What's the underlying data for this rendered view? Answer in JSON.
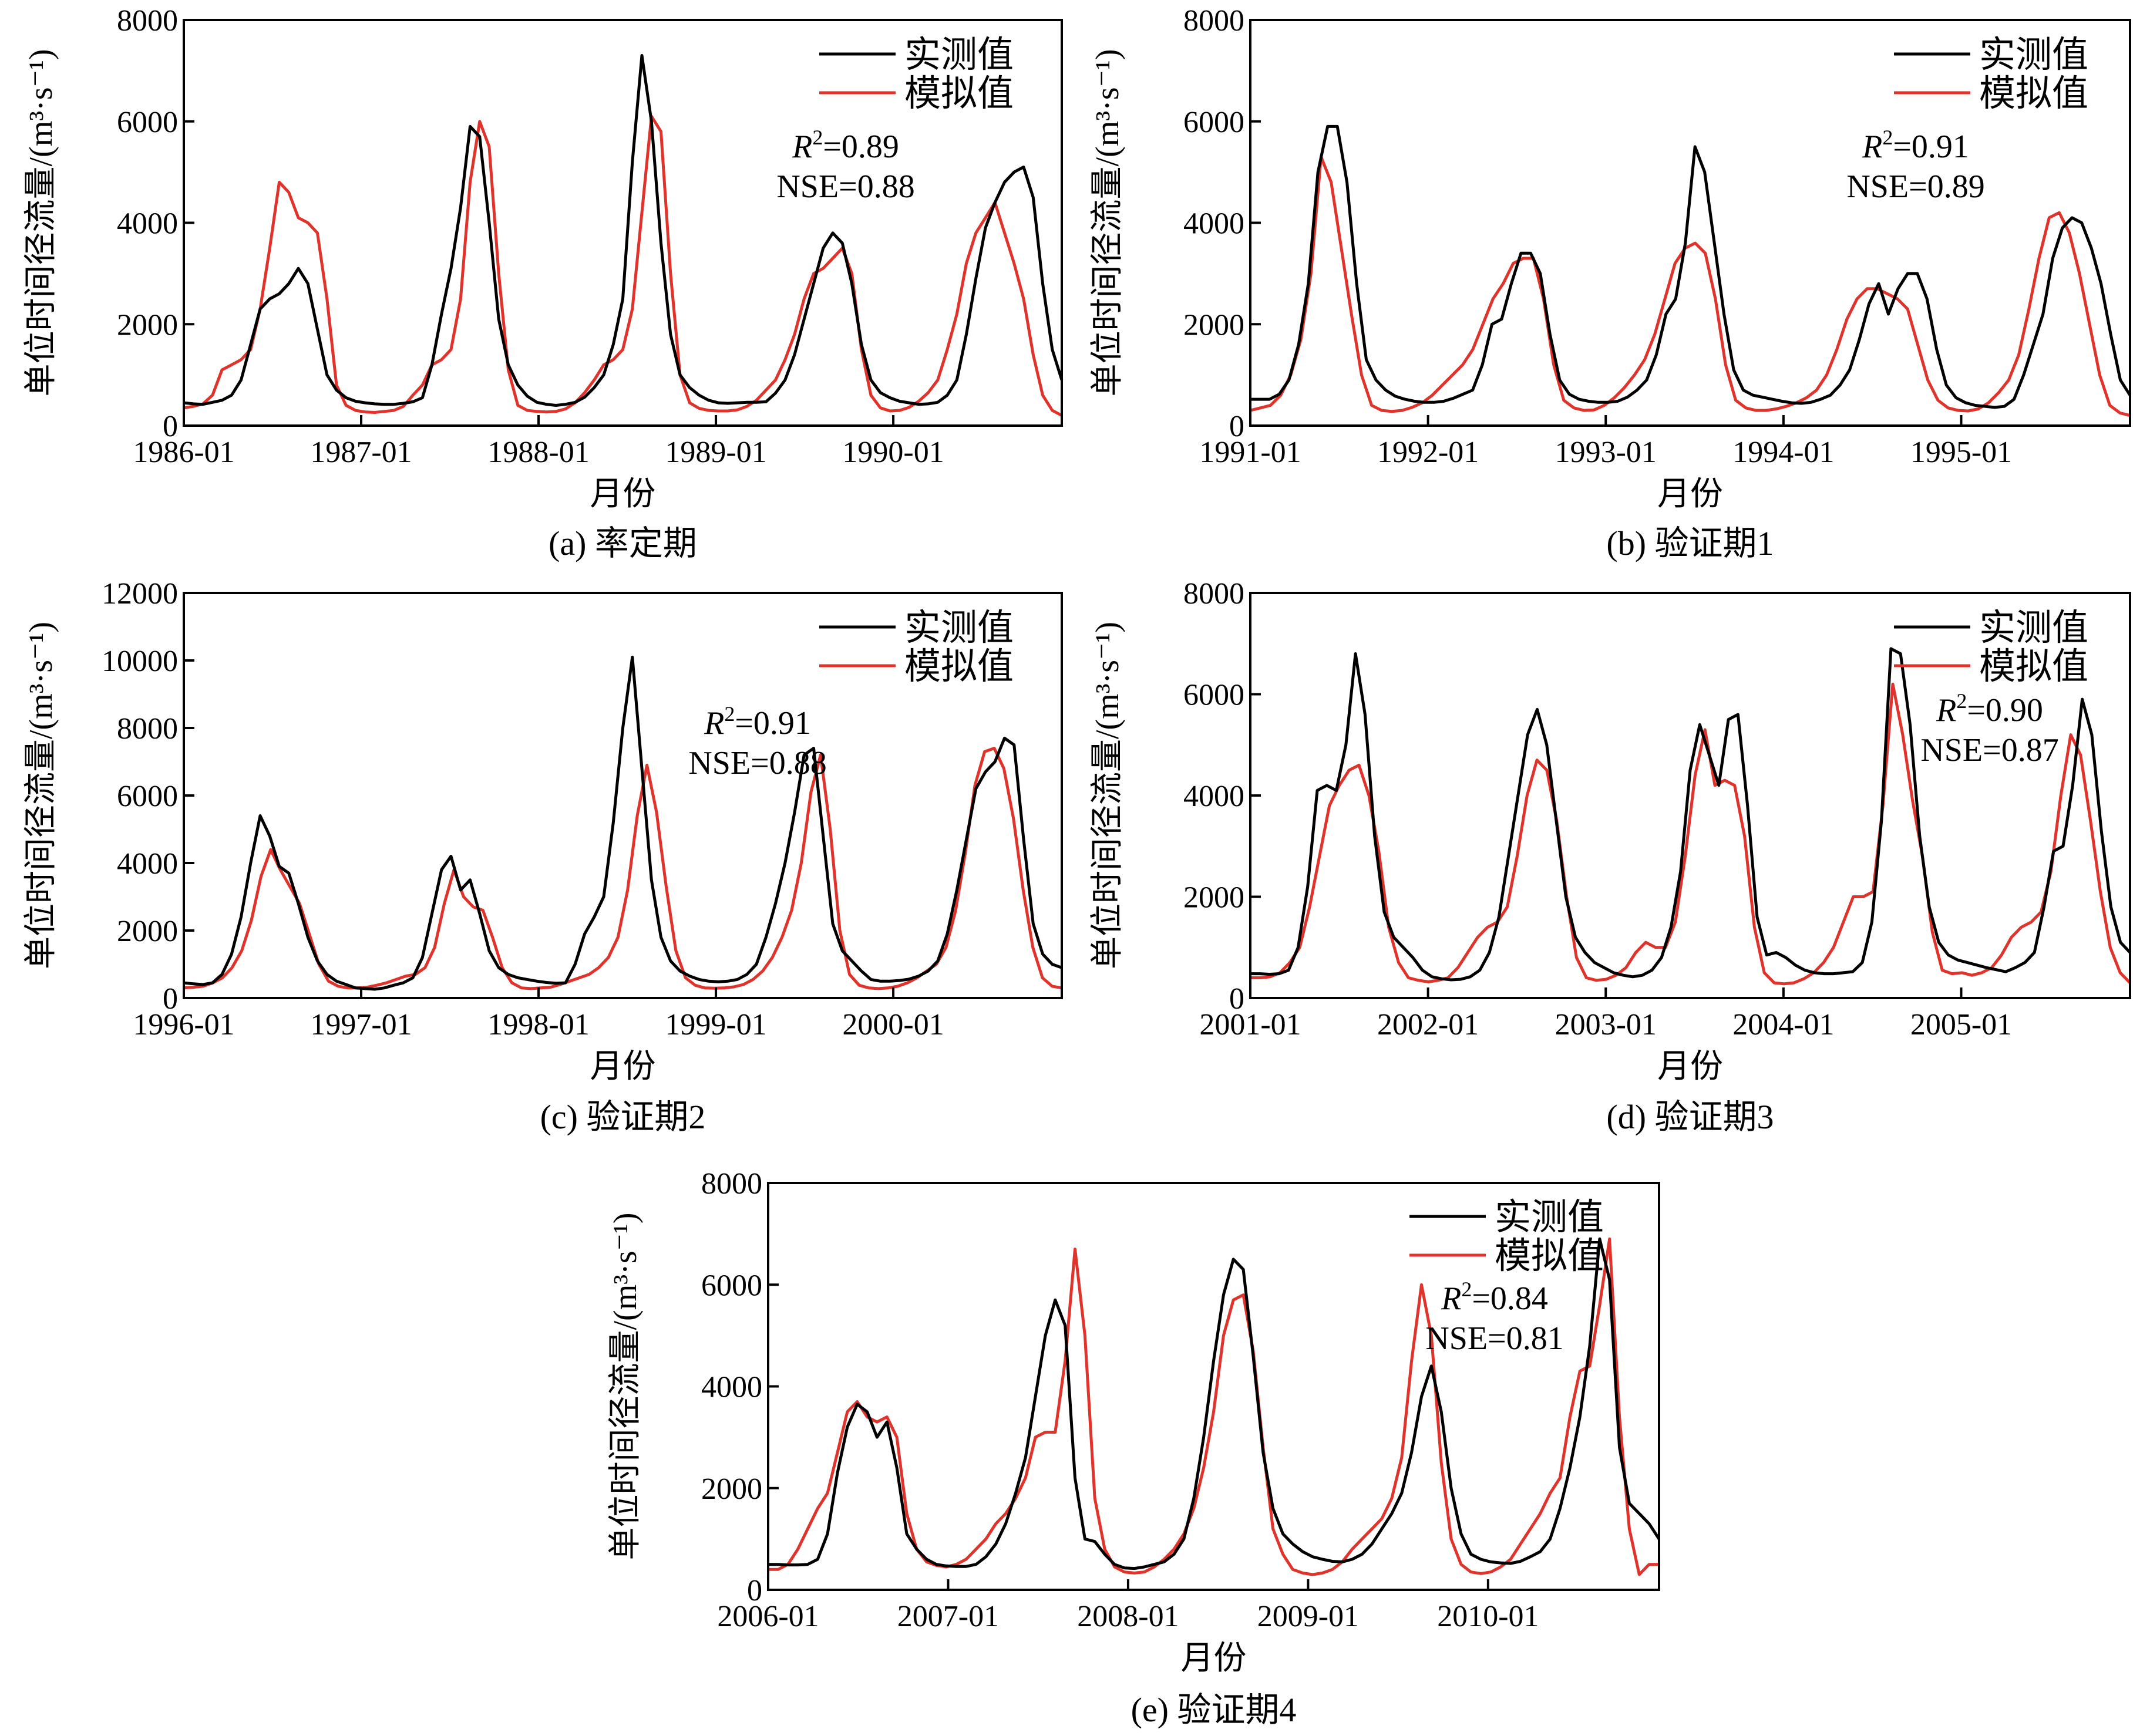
{
  "legend": {
    "observed": "实测值",
    "simulated": "模拟值"
  },
  "colors": {
    "observed": "#000000",
    "simulated": "#e0332b"
  },
  "chart_data": [
    {
      "type": "line",
      "caption": "(a) 率定期",
      "xlabel": "月份",
      "ylabel": "单位时间径流量/(m³·s⁻¹)",
      "xticks": [
        "1986-01",
        "1987-01",
        "1988-01",
        "1989-01",
        "1990-01"
      ],
      "start_year": 1986,
      "ylim": [
        0,
        8000
      ],
      "yticks": [
        "0",
        "2000",
        "4000",
        "6000",
        "8000"
      ],
      "stats": {
        "r2": "=0.89",
        "nse": "NSE=0.88"
      },
      "series": [
        {
          "name": "实测值",
          "values": [
            450,
            430,
            420,
            460,
            500,
            600,
            900,
            1600,
            2300,
            2500,
            2600,
            2800,
            3100,
            2800,
            1900,
            1000,
            700,
            550,
            480,
            450,
            430,
            420,
            420,
            440,
            470,
            550,
            1200,
            2200,
            3100,
            4300,
            5900,
            5700,
            4000,
            2100,
            1200,
            800,
            580,
            460,
            420,
            400,
            420,
            460,
            560,
            750,
            1000,
            1600,
            2500,
            5200,
            7300,
            6000,
            3600,
            1800,
            1000,
            750,
            600,
            500,
            450,
            440,
            450,
            460,
            460,
            470,
            640,
            900,
            1400,
            2100,
            2800,
            3500,
            3800,
            3600,
            2800,
            1600,
            900,
            650,
            550,
            480,
            450,
            420,
            430,
            460,
            600,
            900,
            1800,
            2900,
            3900,
            4400,
            4800,
            5000,
            5100,
            4500,
            2800,
            1500,
            900
          ]
        },
        {
          "name": "模拟值",
          "values": [
            350,
            380,
            430,
            600,
            1100,
            1200,
            1300,
            1500,
            2300,
            3500,
            4800,
            4600,
            4100,
            4000,
            3800,
            2500,
            800,
            400,
            300,
            270,
            260,
            280,
            300,
            380,
            600,
            800,
            1200,
            1300,
            1500,
            2500,
            4800,
            6000,
            5500,
            3000,
            1100,
            400,
            300,
            280,
            270,
            280,
            330,
            450,
            650,
            900,
            1200,
            1300,
            1500,
            2300,
            4200,
            6100,
            5800,
            3000,
            1000,
            450,
            340,
            300,
            290,
            290,
            310,
            380,
            500,
            700,
            900,
            1300,
            1800,
            2500,
            3000,
            3100,
            3300,
            3500,
            3000,
            1500,
            600,
            350,
            290,
            300,
            360,
            480,
            650,
            900,
            1500,
            2200,
            3200,
            3800,
            4100,
            4400,
            3800,
            3200,
            2500,
            1400,
            600,
            300,
            200
          ]
        }
      ]
    },
    {
      "type": "line",
      "caption": "(b) 验证期1",
      "xlabel": "月份",
      "ylabel": "单位时间径流量/(m³·s⁻¹)",
      "xticks": [
        "1991-01",
        "1992-01",
        "1993-01",
        "1994-01",
        "1995-01"
      ],
      "start_year": 1991,
      "ylim": [
        0,
        8000
      ],
      "yticks": [
        "0",
        "2000",
        "4000",
        "6000",
        "8000"
      ],
      "stats": {
        "r2": "=0.91",
        "nse": "NSE=0.89"
      },
      "series": [
        {
          "name": "实测值",
          "values": [
            520,
            520,
            520,
            620,
            900,
            1600,
            2800,
            5000,
            5900,
            5900,
            4800,
            2800,
            1300,
            900,
            700,
            580,
            520,
            480,
            460,
            460,
            480,
            540,
            620,
            700,
            1200,
            2000,
            2100,
            2800,
            3400,
            3400,
            3000,
            1800,
            900,
            620,
            520,
            480,
            460,
            460,
            480,
            560,
            700,
            900,
            1400,
            2200,
            2500,
            3600,
            5500,
            5000,
            3600,
            2200,
            1100,
            700,
            600,
            560,
            520,
            480,
            450,
            440,
            460,
            520,
            600,
            800,
            1100,
            1700,
            2400,
            2800,
            2200,
            2700,
            3000,
            3000,
            2500,
            1500,
            800,
            550,
            450,
            400,
            380,
            360,
            380,
            520,
            1000,
            1600,
            2200,
            3300,
            3900,
            4100,
            4000,
            3500,
            2800,
            1800,
            900,
            600
          ]
        },
        {
          "name": "模拟值",
          "values": [
            300,
            350,
            400,
            600,
            1000,
            1700,
            3000,
            5300,
            4800,
            3500,
            2200,
            1000,
            400,
            300,
            280,
            300,
            360,
            450,
            600,
            800,
            1000,
            1200,
            1500,
            2000,
            2500,
            2800,
            3200,
            3300,
            3300,
            2500,
            1200,
            500,
            350,
            300,
            310,
            400,
            550,
            750,
            1000,
            1300,
            1800,
            2500,
            3200,
            3500,
            3600,
            3400,
            2500,
            1200,
            500,
            350,
            300,
            300,
            330,
            380,
            450,
            550,
            700,
            1000,
            1500,
            2100,
            2500,
            2700,
            2700,
            2600,
            2500,
            2300,
            1600,
            900,
            500,
            350,
            300,
            290,
            330,
            450,
            650,
            900,
            1400,
            2300,
            3300,
            4100,
            4200,
            3800,
            3000,
            2000,
            1000,
            400,
            250,
            200
          ]
        }
      ]
    },
    {
      "type": "line",
      "caption": "(c) 验证期2",
      "xlabel": "月份",
      "ylabel": "单位时间径流量/(m³·s⁻¹)",
      "xticks": [
        "1996-01",
        "1997-01",
        "1998-01",
        "1999-01",
        "2000-01"
      ],
      "start_year": 1996,
      "ylim": [
        0,
        12000
      ],
      "yticks": [
        "0",
        "2000",
        "4000",
        "6000",
        "8000",
        "10000",
        "12000"
      ],
      "stats": {
        "r2": "=0.91",
        "nse": "NSE=0.88"
      },
      "series": [
        {
          "name": "实测值",
          "values": [
            450,
            420,
            400,
            450,
            700,
            1300,
            2400,
            4000,
            5400,
            4800,
            3900,
            3700,
            2800,
            1800,
            1100,
            700,
            500,
            400,
            300,
            280,
            260,
            300,
            380,
            450,
            600,
            1200,
            2500,
            3800,
            4200,
            3200,
            3500,
            2500,
            1400,
            900,
            700,
            600,
            550,
            500,
            460,
            440,
            450,
            1000,
            1900,
            2400,
            3000,
            5200,
            8000,
            10100,
            6800,
            3500,
            1800,
            1100,
            800,
            650,
            550,
            500,
            480,
            500,
            550,
            700,
            1000,
            1800,
            2800,
            4000,
            5500,
            7200,
            7400,
            4800,
            2200,
            1400,
            1100,
            800,
            550,
            500,
            500,
            520,
            560,
            650,
            800,
            1100,
            1900,
            3200,
            4700,
            6200,
            6700,
            7000,
            7700,
            7500,
            4700,
            2200,
            1300,
            1000,
            900
          ]
        },
        {
          "name": "模拟值",
          "values": [
            300,
            320,
            350,
            450,
            600,
            900,
            1400,
            2300,
            3600,
            4400,
            3800,
            3300,
            2800,
            1900,
            1000,
            500,
            350,
            300,
            300,
            320,
            380,
            450,
            550,
            650,
            700,
            900,
            1500,
            2800,
            3800,
            3000,
            2700,
            2600,
            1800,
            900,
            450,
            300,
            280,
            300,
            320,
            400,
            500,
            600,
            700,
            900,
            1200,
            1800,
            3200,
            5400,
            6900,
            5500,
            3300,
            1400,
            600,
            380,
            300,
            290,
            300,
            330,
            400,
            550,
            800,
            1200,
            1800,
            2600,
            4000,
            6100,
            7200,
            5000,
            2000,
            700,
            380,
            300,
            280,
            300,
            350,
            450,
            600,
            800,
            1000,
            1500,
            2600,
            4300,
            6300,
            7300,
            7400,
            6800,
            5300,
            3200,
            1500,
            600,
            350,
            300
          ]
        }
      ]
    },
    {
      "type": "line",
      "caption": "(d) 验证期3",
      "xlabel": "月份",
      "ylabel": "单位时间径流量/(m³·s⁻¹)",
      "xticks": [
        "2001-01",
        "2002-01",
        "2003-01",
        "2004-01",
        "2005-01"
      ],
      "start_year": 2001,
      "ylim": [
        0,
        8000
      ],
      "yticks": [
        "0",
        "2000",
        "4000",
        "6000",
        "8000"
      ],
      "stats": {
        "r2": "=0.90",
        "nse": "NSE=0.87"
      },
      "series": [
        {
          "name": "实测值",
          "values": [
            480,
            480,
            470,
            480,
            550,
            1000,
            2200,
            4100,
            4200,
            4100,
            5000,
            6800,
            5600,
            3200,
            1700,
            1200,
            1000,
            800,
            550,
            420,
            380,
            360,
            370,
            420,
            550,
            900,
            1600,
            2800,
            4000,
            5200,
            5700,
            5000,
            3500,
            2000,
            1200,
            900,
            700,
            600,
            500,
            450,
            420,
            450,
            550,
            800,
            1400,
            2500,
            4500,
            5400,
            4800,
            4200,
            5500,
            5600,
            3800,
            1600,
            850,
            900,
            800,
            650,
            550,
            500,
            480,
            480,
            500,
            520,
            700,
            1500,
            3500,
            6900,
            6800,
            5400,
            3200,
            1800,
            1100,
            850,
            750,
            700,
            650,
            600,
            560,
            520,
            600,
            700,
            900,
            1800,
            2900,
            3000,
            4200,
            5900,
            5200,
            3300,
            1800,
            1100,
            900
          ]
        },
        {
          "name": "模拟值",
          "values": [
            400,
            400,
            420,
            500,
            700,
            1000,
            1800,
            2800,
            3800,
            4200,
            4500,
            4600,
            4000,
            2900,
            1400,
            700,
            400,
            350,
            320,
            350,
            400,
            600,
            900,
            1200,
            1400,
            1500,
            1800,
            2800,
            4000,
            4700,
            4500,
            3500,
            2000,
            800,
            400,
            350,
            370,
            450,
            600,
            900,
            1100,
            1000,
            1000,
            1500,
            2800,
            4400,
            5300,
            4200,
            4300,
            4200,
            3200,
            1400,
            500,
            300,
            280,
            300,
            380,
            500,
            700,
            1000,
            1500,
            2000,
            2000,
            2100,
            3800,
            6200,
            5200,
            3900,
            2800,
            1300,
            550,
            480,
            500,
            450,
            500,
            600,
            850,
            1200,
            1400,
            1500,
            1700,
            2500,
            4000,
            5200,
            4800,
            3500,
            2100,
            1000,
            500,
            300
          ]
        }
      ]
    },
    {
      "type": "line",
      "caption": "(e) 验证期4",
      "xlabel": "月份",
      "ylabel": "单位时间径流量/(m³·s⁻¹)",
      "xticks": [
        "2006-01",
        "2007-01",
        "2008-01",
        "2009-01",
        "2010-01"
      ],
      "start_year": 2006,
      "ylim": [
        0,
        8000
      ],
      "yticks": [
        "0",
        "2000",
        "4000",
        "6000",
        "8000"
      ],
      "stats": {
        "r2": "=0.84",
        "nse": "NSE=0.81"
      },
      "series": [
        {
          "name": "实测值",
          "values": [
            500,
            500,
            490,
            490,
            500,
            600,
            1100,
            2300,
            3200,
            3650,
            3500,
            3000,
            3300,
            2400,
            1100,
            800,
            600,
            500,
            470,
            460,
            460,
            500,
            650,
            900,
            1300,
            1900,
            2600,
            3800,
            5000,
            5700,
            5200,
            2200,
            1000,
            950,
            700,
            500,
            430,
            420,
            450,
            500,
            550,
            700,
            1000,
            1800,
            3000,
            4500,
            5800,
            6500,
            6300,
            4600,
            2700,
            1600,
            1100,
            900,
            750,
            650,
            600,
            560,
            550,
            600,
            700,
            900,
            1200,
            1500,
            1900,
            2700,
            3800,
            4400,
            3500,
            2000,
            1100,
            700,
            600,
            550,
            530,
            520,
            560,
            650,
            750,
            1000,
            1600,
            2400,
            3400,
            4800,
            6900,
            6100,
            2800,
            1700,
            1500,
            1300,
            1000
          ]
        },
        {
          "name": "模拟值",
          "values": [
            400,
            400,
            500,
            800,
            1200,
            1600,
            1900,
            2700,
            3500,
            3700,
            3400,
            3300,
            3400,
            3000,
            1500,
            800,
            550,
            480,
            450,
            500,
            600,
            800,
            1000,
            1300,
            1500,
            1800,
            2200,
            3000,
            3100,
            3100,
            4500,
            6700,
            5000,
            1800,
            800,
            450,
            350,
            330,
            350,
            450,
            600,
            800,
            1100,
            1600,
            2400,
            3500,
            5000,
            5700,
            5800,
            4700,
            2800,
            1200,
            700,
            400,
            330,
            300,
            330,
            400,
            550,
            800,
            1000,
            1200,
            1400,
            1800,
            2600,
            4500,
            6000,
            5000,
            2500,
            1000,
            500,
            350,
            320,
            350,
            450,
            600,
            900,
            1200,
            1500,
            1900,
            2200,
            3400,
            4300,
            4400,
            5600,
            6900,
            3400,
            1200,
            300,
            500,
            500
          ]
        }
      ]
    }
  ]
}
